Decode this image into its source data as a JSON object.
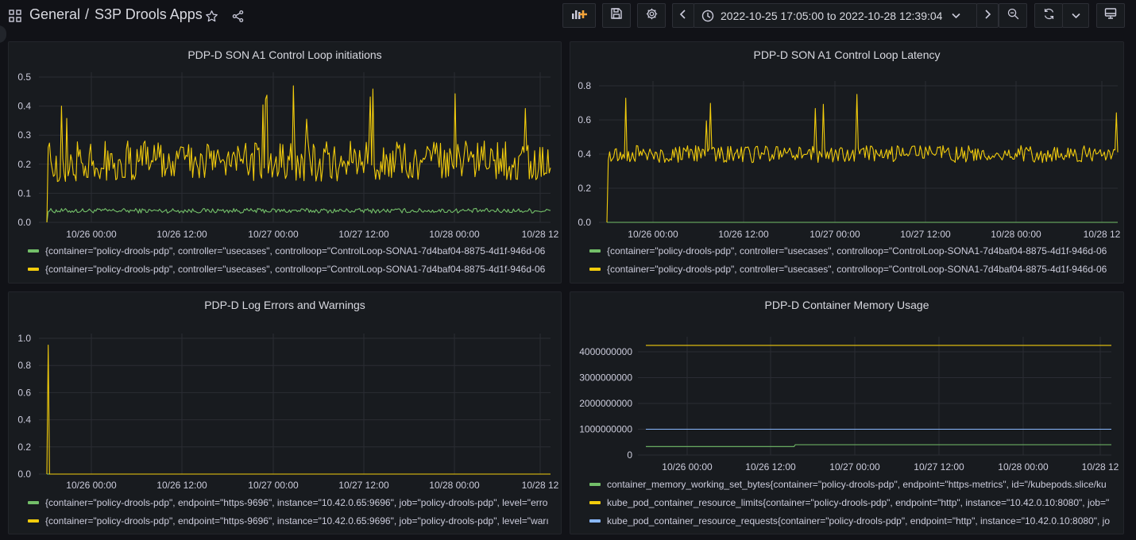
{
  "header": {
    "folder": "General",
    "separator": "/",
    "dashboard": "S3P Drools Apps",
    "time_range": "2022-10-25 17:05:00 to 2022-10-28 12:39:04"
  },
  "colors": {
    "green": "#73bf69",
    "yellow": "#f2cc0c",
    "blue": "#8ab8ff",
    "grid": "#2a2c33"
  },
  "icons": [
    "apps-icon",
    "star-icon",
    "share-icon",
    "add-panel-icon",
    "save-icon",
    "settings-icon",
    "chevron-left-icon",
    "clock-icon",
    "chevron-down-icon",
    "chevron-right-icon",
    "zoom-out-icon",
    "refresh-icon",
    "tv-icon"
  ],
  "panels": [
    {
      "title": "PDP-D SON A1 Control Loop initiations",
      "legend": [
        "{container=\"policy-drools-pdp\", controller=\"usecases\", controlloop=\"ControlLoop-SONA1-7d4baf04-8875-4d1f-946d-06",
        "{container=\"policy-drools-pdp\", controller=\"usecases\", controlloop=\"ControlLoop-SONA1-7d4baf04-8875-4d1f-946d-06"
      ]
    },
    {
      "title": "PDP-D SON A1 Control Loop Latency",
      "legend": [
        "{container=\"policy-drools-pdp\", controller=\"usecases\", controlloop=\"ControlLoop-SONA1-7d4baf04-8875-4d1f-946d-06",
        "{container=\"policy-drools-pdp\", controller=\"usecases\", controlloop=\"ControlLoop-SONA1-7d4baf04-8875-4d1f-946d-06"
      ]
    },
    {
      "title": "PDP-D Log Errors and Warnings",
      "legend": [
        "{container=\"policy-drools-pdp\", endpoint=\"https-9696\", instance=\"10.42.0.65:9696\", job=\"policy-drools-pdp\", level=\"erro",
        "{container=\"policy-drools-pdp\", endpoint=\"https-9696\", instance=\"10.42.0.65:9696\", job=\"policy-drools-pdp\", level=\"warı"
      ]
    },
    {
      "title": "PDP-D Container Memory Usage",
      "legend": [
        "container_memory_working_set_bytes{container=\"policy-drools-pdp\", endpoint=\"https-metrics\", id=\"/kubepods.slice/ku",
        "kube_pod_container_resource_limits{container=\"policy-drools-pdp\", endpoint=\"http\", instance=\"10.42.0.10:8080\", job=\"",
        "kube_pod_container_resource_requests{container=\"policy-drools-pdp\", endpoint=\"http\", instance=\"10.42.0.10:8080\", jo"
      ]
    }
  ],
  "chart_data": [
    {
      "type": "line",
      "title": "PDP-D SON A1 Control Loop initiations",
      "x_range": [
        "2022-10-25 17:05:00",
        "2022-10-28 12:39:04"
      ],
      "x_ticks": [
        "10/26 00:00",
        "10/26 12:00",
        "10/27 00:00",
        "10/27 12:00",
        "10/28 00:00",
        "10/28 12"
      ],
      "y_ticks": [
        "0.5",
        "0.4",
        "0.3",
        "0.2",
        "0.1",
        "0.0"
      ],
      "ylim": [
        0,
        0.5
      ],
      "grid": true,
      "legend_placement": "bottom",
      "series": [
        {
          "color": "#73bf69",
          "pattern": "noise",
          "mean": 0.04,
          "amplitude": 0.008,
          "spike_every": 0,
          "spike_to": 0,
          "start_at_zero": true
        },
        {
          "color": "#f2cc0c",
          "pattern": "noise",
          "mean": 0.21,
          "amplitude": 0.07,
          "spike_every": 0,
          "spike_to": 0.47,
          "start_at_zero": true
        }
      ]
    },
    {
      "type": "line",
      "title": "PDP-D SON A1 Control Loop Latency",
      "x_range": [
        "2022-10-25 17:05:00",
        "2022-10-28 12:39:04"
      ],
      "x_ticks": [
        "10/26 00:00",
        "10/26 12:00",
        "10/27 00:00",
        "10/27 12:00",
        "10/28 00:00",
        "10/28 12"
      ],
      "y_ticks": [
        "0.8",
        "0.6",
        "0.4",
        "0.2",
        "0.0"
      ],
      "ylim": [
        0,
        0.8
      ],
      "grid": true,
      "legend_placement": "bottom",
      "series": [
        {
          "color": "#73bf69",
          "pattern": "flat",
          "mean": 0.0
        },
        {
          "color": "#f2cc0c",
          "pattern": "noise",
          "mean": 0.4,
          "amplitude": 0.05,
          "spike_to": 0.75,
          "start_at_zero": true
        }
      ]
    },
    {
      "type": "line",
      "title": "PDP-D Log Errors and Warnings",
      "x_range": [
        "2022-10-25 17:05:00",
        "2022-10-28 12:39:04"
      ],
      "x_ticks": [
        "10/26 00:00",
        "10/26 12:00",
        "10/27 00:00",
        "10/27 12:00",
        "10/28 00:00",
        "10/28 12"
      ],
      "y_ticks": [
        "1.0",
        "0.8",
        "0.6",
        "0.4",
        "0.2",
        "0.0"
      ],
      "ylim": [
        0,
        1.0
      ],
      "grid": true,
      "legend_placement": "bottom",
      "series": [
        {
          "color": "#73bf69",
          "pattern": "flat",
          "mean": 0.0
        },
        {
          "color": "#f2cc0c",
          "pattern": "spike-start",
          "mean": 0.0,
          "spike_to": 0.95
        }
      ]
    },
    {
      "type": "line",
      "title": "PDP-D Container Memory Usage",
      "x_range": [
        "2022-10-25 17:05:00",
        "2022-10-28 12:39:04"
      ],
      "x_ticks": [
        "10/26 00:00",
        "10/26 12:00",
        "10/27 00:00",
        "10/27 12:00",
        "10/28 00:00",
        "10/28 12"
      ],
      "y_ticks": [
        "4000000000",
        "3000000000",
        "2000000000",
        "1000000000",
        "0"
      ],
      "ylim": [
        0,
        4400000000
      ],
      "grid": true,
      "legend_placement": "bottom",
      "series": [
        {
          "color": "#73bf69",
          "pattern": "step",
          "mean": 330000000,
          "step_to": 400000000
        },
        {
          "color": "#f2cc0c",
          "pattern": "flat",
          "mean": 4250000000
        },
        {
          "color": "#8ab8ff",
          "pattern": "flat",
          "mean": 1000000000
        }
      ]
    }
  ]
}
